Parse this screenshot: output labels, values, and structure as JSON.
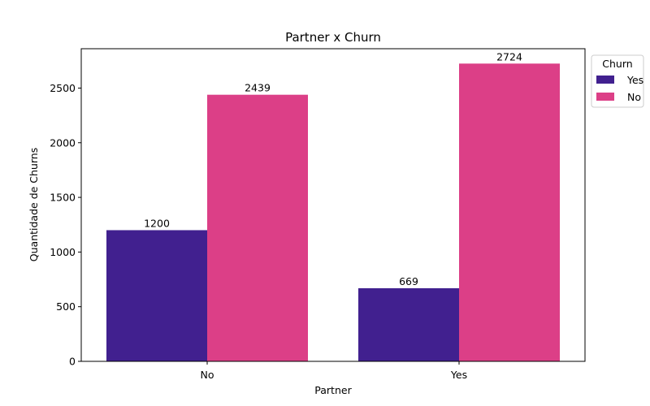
{
  "chart_data": {
    "type": "bar",
    "title": "Partner x Churn",
    "xlabel": "Partner",
    "ylabel": "Quantidade de Churns",
    "categories": [
      "No",
      "Yes"
    ],
    "series": [
      {
        "name": "Yes",
        "values": [
          1200,
          669
        ],
        "color": "#41208f"
      },
      {
        "name": "No",
        "values": [
          2439,
          2724
        ],
        "color": "#dc3f87"
      }
    ],
    "ylim": [
      0,
      2860
    ],
    "yticks": [
      0,
      500,
      1000,
      1500,
      2000,
      2500
    ],
    "legend": {
      "title": "Churn",
      "placement": "outside-top-right"
    },
    "grid": false
  }
}
